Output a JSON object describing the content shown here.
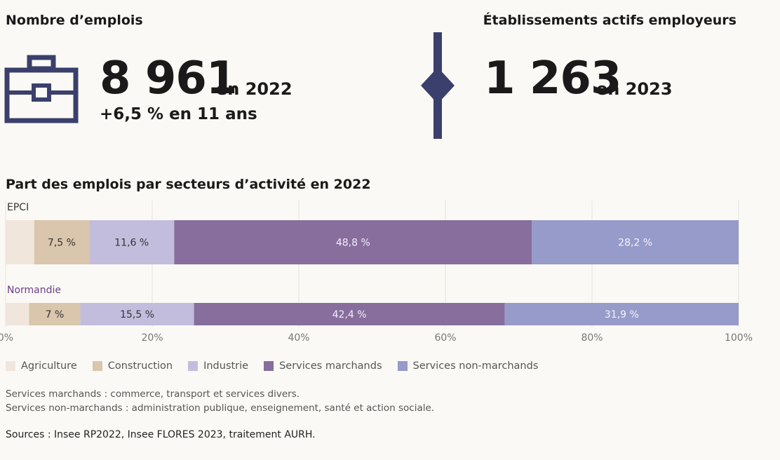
{
  "kpi_left": {
    "title": "Nombre d’emplois",
    "value": "8 961",
    "year": "en 2022",
    "subtitle": "+6,5 % en 11 ans",
    "icon": "briefcase-icon"
  },
  "kpi_right": {
    "title": "Établissements actifs employeurs",
    "value": "1 263",
    "year": "en 2023"
  },
  "colors": {
    "accent": "#3b3f6b",
    "agriculture": "#f1e6dc",
    "construction": "#d9c6ad",
    "industrie": "#c3bddd",
    "services_marchands": "#876e9d",
    "services_non_marchands": "#979bc9"
  },
  "chart_data": {
    "type": "bar",
    "orientation": "horizontal-stacked",
    "title": "Part des emplois par secteurs d’activité en 2022",
    "categories": [
      "EPCI",
      "Normandie"
    ],
    "series": [
      {
        "name": "Agriculture",
        "values": [
          3.9,
          3.2
        ],
        "labels": [
          "",
          ""
        ]
      },
      {
        "name": "Construction",
        "values": [
          7.5,
          7.0
        ],
        "labels": [
          "7,5 %",
          "7 %"
        ]
      },
      {
        "name": "Industrie",
        "values": [
          11.6,
          15.5
        ],
        "labels": [
          "11,6 %",
          "15,5 %"
        ]
      },
      {
        "name": "Services marchands",
        "values": [
          48.8,
          42.4
        ],
        "labels": [
          "48,8 %",
          "42,4 %"
        ]
      },
      {
        "name": "Services non-marchands",
        "values": [
          28.2,
          31.9
        ],
        "labels": [
          "28,2 %",
          "31,9 %"
        ]
      }
    ],
    "xlim": [
      0,
      100
    ],
    "ticks": [
      0,
      20,
      40,
      60,
      80,
      100
    ],
    "tick_labels": [
      "0%",
      "20%",
      "40%",
      "60%",
      "80%",
      "100%"
    ],
    "grid": true,
    "legend_position": "bottom"
  },
  "notes": [
    "Services marchands : commerce, transport et services divers.",
    "Services non-marchands : administration publique, enseignement, santé et action sociale."
  ],
  "source": "Sources : Insee RP2022, Insee FLORES 2023, traitement AURH."
}
